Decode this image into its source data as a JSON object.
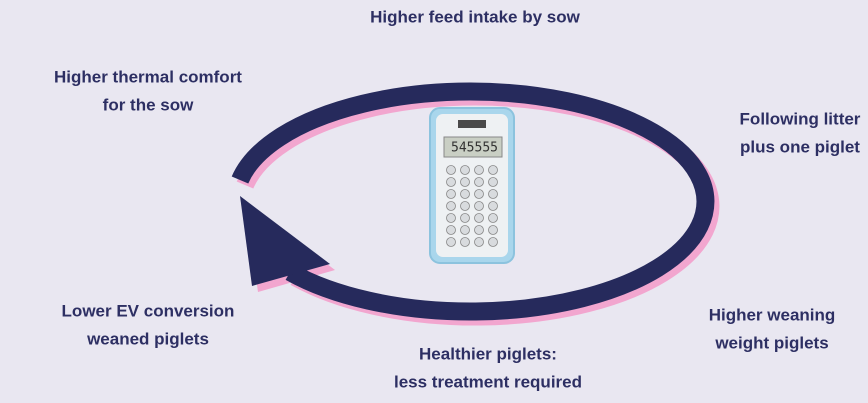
{
  "labels": [
    {
      "lines": [
        "Higher feed intake by sow"
      ]
    },
    {
      "lines": [
        "Following litter",
        "plus one piglet"
      ]
    },
    {
      "lines": [
        "Higher weaning",
        "weight piglets"
      ]
    },
    {
      "lines": [
        "Healthier piglets:",
        "less treatment required"
      ]
    },
    {
      "lines": [
        "Lower EV conversion",
        "weaned piglets"
      ]
    },
    {
      "lines": [
        "Higher thermal comfort",
        "for the sow"
      ]
    }
  ],
  "calculator": {
    "display": "545555"
  }
}
